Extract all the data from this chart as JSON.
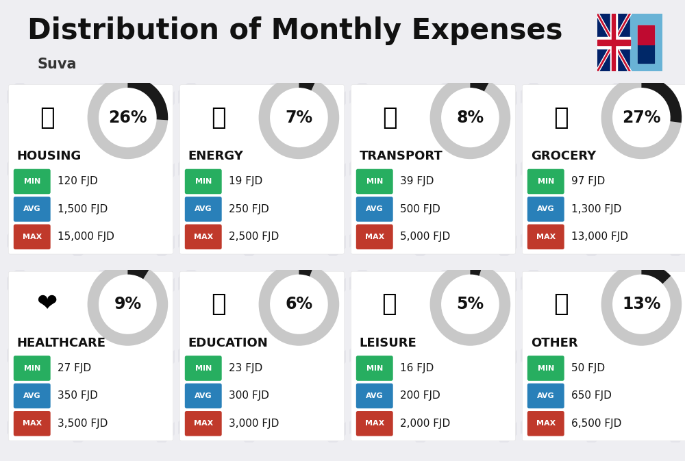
{
  "title": "Distribution of Monthly Expenses",
  "subtitle": "Suva",
  "background_color": "#eeeef2",
  "categories": [
    {
      "name": "HOUSING",
      "pct": 26,
      "min": "120 FJD",
      "avg": "1,500 FJD",
      "max": "15,000 FJD",
      "row": 0,
      "col": 0
    },
    {
      "name": "ENERGY",
      "pct": 7,
      "min": "19 FJD",
      "avg": "250 FJD",
      "max": "2,500 FJD",
      "row": 0,
      "col": 1
    },
    {
      "name": "TRANSPORT",
      "pct": 8,
      "min": "39 FJD",
      "avg": "500 FJD",
      "max": "5,000 FJD",
      "row": 0,
      "col": 2
    },
    {
      "name": "GROCERY",
      "pct": 27,
      "min": "97 FJD",
      "avg": "1,300 FJD",
      "max": "13,000 FJD",
      "row": 0,
      "col": 3
    },
    {
      "name": "HEALTHCARE",
      "pct": 9,
      "min": "27 FJD",
      "avg": "350 FJD",
      "max": "3,500 FJD",
      "row": 1,
      "col": 0
    },
    {
      "name": "EDUCATION",
      "pct": 6,
      "min": "23 FJD",
      "avg": "300 FJD",
      "max": "3,000 FJD",
      "row": 1,
      "col": 1
    },
    {
      "name": "LEISURE",
      "pct": 5,
      "min": "16 FJD",
      "avg": "200 FJD",
      "max": "2,000 FJD",
      "row": 1,
      "col": 2
    },
    {
      "name": "OTHER",
      "pct": 13,
      "min": "50 FJD",
      "avg": "650 FJD",
      "max": "6,500 FJD",
      "row": 1,
      "col": 3
    }
  ],
  "color_min": "#27ae60",
  "color_avg": "#2980b9",
  "color_max": "#c0392b",
  "arc_filled": "#1a1a1a",
  "arc_bg": "#c8c8c8",
  "title_fontsize": 30,
  "subtitle_fontsize": 15,
  "cat_fontsize": 13,
  "pct_fontsize": 17,
  "badge_fontsize": 8,
  "val_fontsize": 11
}
